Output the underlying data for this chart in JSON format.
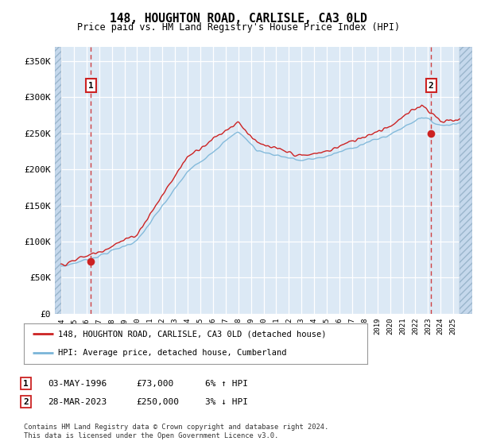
{
  "title": "148, HOUGHTON ROAD, CARLISLE, CA3 0LD",
  "subtitle": "Price paid vs. HM Land Registry's House Price Index (HPI)",
  "legend_line1": "148, HOUGHTON ROAD, CARLISLE, CA3 0LD (detached house)",
  "legend_line2": "HPI: Average price, detached house, Cumberland",
  "table_row1": [
    "1",
    "03-MAY-1996",
    "£73,000",
    "6% ↑ HPI"
  ],
  "table_row2": [
    "2",
    "28-MAR-2023",
    "£250,000",
    "3% ↓ HPI"
  ],
  "footnote": "Contains HM Land Registry data © Crown copyright and database right 2024.\nThis data is licensed under the Open Government Licence v3.0.",
  "sale1_year": 1996.35,
  "sale1_price": 73000,
  "sale2_year": 2023.24,
  "sale2_price": 250000,
  "hpi_color": "#7ab5d8",
  "price_color": "#cc2222",
  "marker_color": "#cc2222",
  "annotation_box_color": "#cc2222",
  "background_plot": "#dce9f5",
  "background_hatch_color": "#c5d8ec",
  "ylim": [
    0,
    370000
  ],
  "xlim_start": 1993.5,
  "xlim_end": 2026.5,
  "yticks": [
    0,
    50000,
    100000,
    150000,
    200000,
    250000,
    300000,
    350000
  ],
  "ytick_labels": [
    "£0",
    "£50K",
    "£100K",
    "£150K",
    "£200K",
    "£250K",
    "£300K",
    "£350K"
  ]
}
